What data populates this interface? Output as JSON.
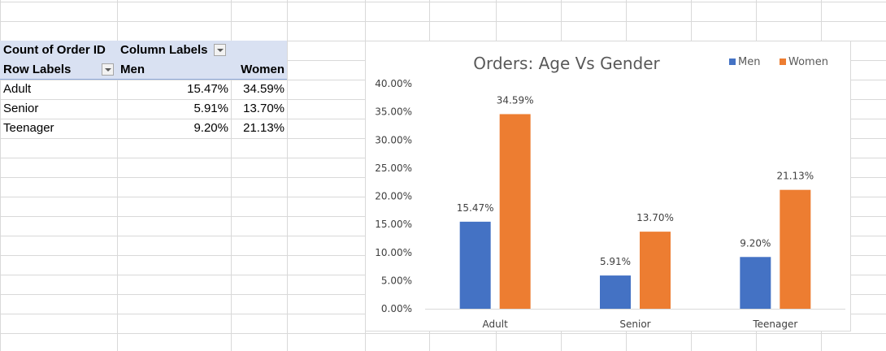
{
  "pivot": {
    "values_header": "Count of Order ID",
    "columns_header": "Column Labels",
    "rows_header": "Row Labels",
    "col1": "Men",
    "col2": "Women",
    "rows": [
      {
        "label": "Adult",
        "men": "15.47%",
        "women": "34.59%"
      },
      {
        "label": "Senior",
        "men": "5.91%",
        "women": "13.70%"
      },
      {
        "label": "Teenager",
        "men": "9.20%",
        "women": "21.13%"
      }
    ]
  },
  "colors": {
    "men": "#4472c4",
    "women": "#ed7d31",
    "header_fill": "#d9e1f2"
  },
  "chart_data": {
    "type": "bar",
    "title": "Orders: Age Vs Gender",
    "categories": [
      "Adult",
      "Senior",
      "Teenager"
    ],
    "series": [
      {
        "name": "Men",
        "values": [
          15.47,
          5.91,
          9.2
        ],
        "labels": [
          "15.47%",
          "5.91%",
          "9.20%"
        ],
        "color": "#4472c4"
      },
      {
        "name": "Women",
        "values": [
          34.59,
          13.7,
          21.13
        ],
        "labels": [
          "34.59%",
          "13.70%",
          "21.13%"
        ],
        "color": "#ed7d31"
      }
    ],
    "yticks": [
      "0.00%",
      "5.00%",
      "10.00%",
      "15.00%",
      "20.00%",
      "25.00%",
      "30.00%",
      "35.00%",
      "40.00%"
    ],
    "ylim": [
      0,
      40
    ],
    "xlabel": "",
    "ylabel": "",
    "legend_position": "top-right",
    "grid": false
  }
}
